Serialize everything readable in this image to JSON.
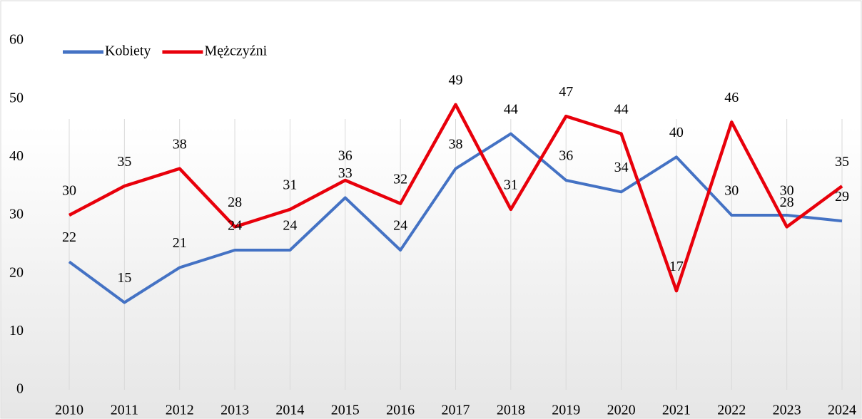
{
  "chart_data": {
    "type": "line",
    "categories": [
      "2010",
      "2011",
      "2012",
      "2013",
      "2014",
      "2015",
      "2016",
      "2017",
      "2018",
      "2019",
      "2020",
      "2021",
      "2022",
      "2023",
      "2024"
    ],
    "series": [
      {
        "name": "Kobiety",
        "color": "#4472c4",
        "values": [
          22,
          15,
          21,
          24,
          24,
          33,
          24,
          38,
          44,
          36,
          34,
          40,
          30,
          30,
          29
        ]
      },
      {
        "name": "Mężczyźni",
        "color": "#e8000b",
        "values": [
          30,
          35,
          38,
          28,
          31,
          36,
          32,
          49,
          31,
          47,
          44,
          17,
          46,
          28,
          35
        ]
      }
    ],
    "ylim": [
      0,
      60
    ],
    "yticks": [
      0,
      10,
      20,
      30,
      40,
      50,
      60
    ],
    "grid": true,
    "legend": "top-left"
  }
}
